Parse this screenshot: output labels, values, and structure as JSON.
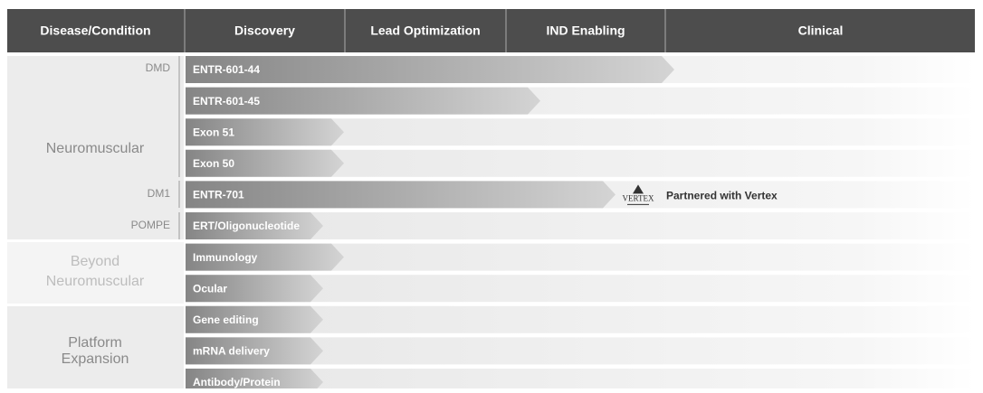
{
  "header": {
    "columns": [
      "Disease/Condition",
      "Discovery",
      "Lead Optimization",
      "IND Enabling",
      "Clinical"
    ]
  },
  "groups": [
    {
      "label": [
        "Neuromuscular"
      ],
      "subgroups": [
        "DMD",
        "DM1",
        "POMPE"
      ]
    },
    {
      "label": [
        "Beyond",
        "Neuromuscular"
      ]
    },
    {
      "label": [
        "Platform",
        "Expansion"
      ]
    }
  ],
  "programs": [
    "ENTR-601-44",
    "ENTR-601-45",
    "Exon 51",
    "Exon 50",
    "ENTR-701",
    "ERT/Oligonucleotide",
    "Immunology",
    "Ocular",
    "Gene editing",
    "mRNA delivery",
    "Antibody/Protein"
  ],
  "partner": {
    "logo": "VERTEX",
    "note": "Partnered with Vertex"
  }
}
